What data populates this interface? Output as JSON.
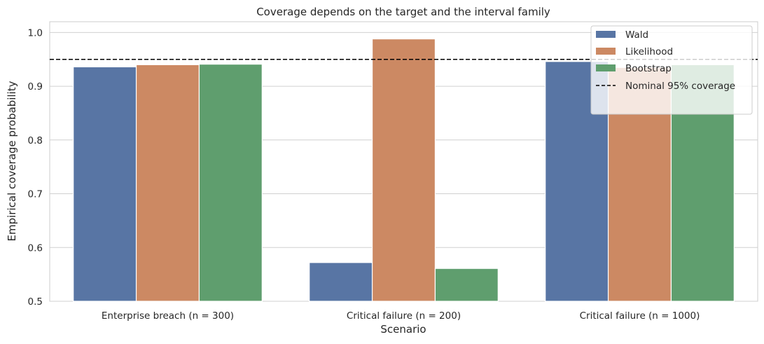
{
  "chart_data": {
    "type": "bar",
    "title": "Coverage depends on the target and the interval family",
    "xlabel": "Scenario",
    "ylabel": "Empirical coverage probability",
    "categories": [
      "Enterprise breach (n = 300)",
      "Critical failure (n = 200)",
      "Critical failure (n = 1000)"
    ],
    "series": [
      {
        "name": "Wald",
        "color": "#5875a4",
        "values": [
          0.936,
          0.572,
          0.946
        ]
      },
      {
        "name": "Likelihood",
        "color": "#cc8963",
        "values": [
          0.94,
          0.988,
          0.935
        ]
      },
      {
        "name": "Bootstrap",
        "color": "#5f9e6e",
        "values": [
          0.941,
          0.561,
          0.94
        ]
      }
    ],
    "reference_line": {
      "label": "Nominal 95% coverage",
      "value": 0.95,
      "style": "dashed",
      "color": "#000000"
    },
    "ylim": [
      0.5,
      1.02
    ],
    "yticks": [
      "0.5",
      "0.6",
      "0.7",
      "0.8",
      "0.9",
      "1.0"
    ],
    "grid": "horizontal",
    "legend_position": "top-right"
  }
}
